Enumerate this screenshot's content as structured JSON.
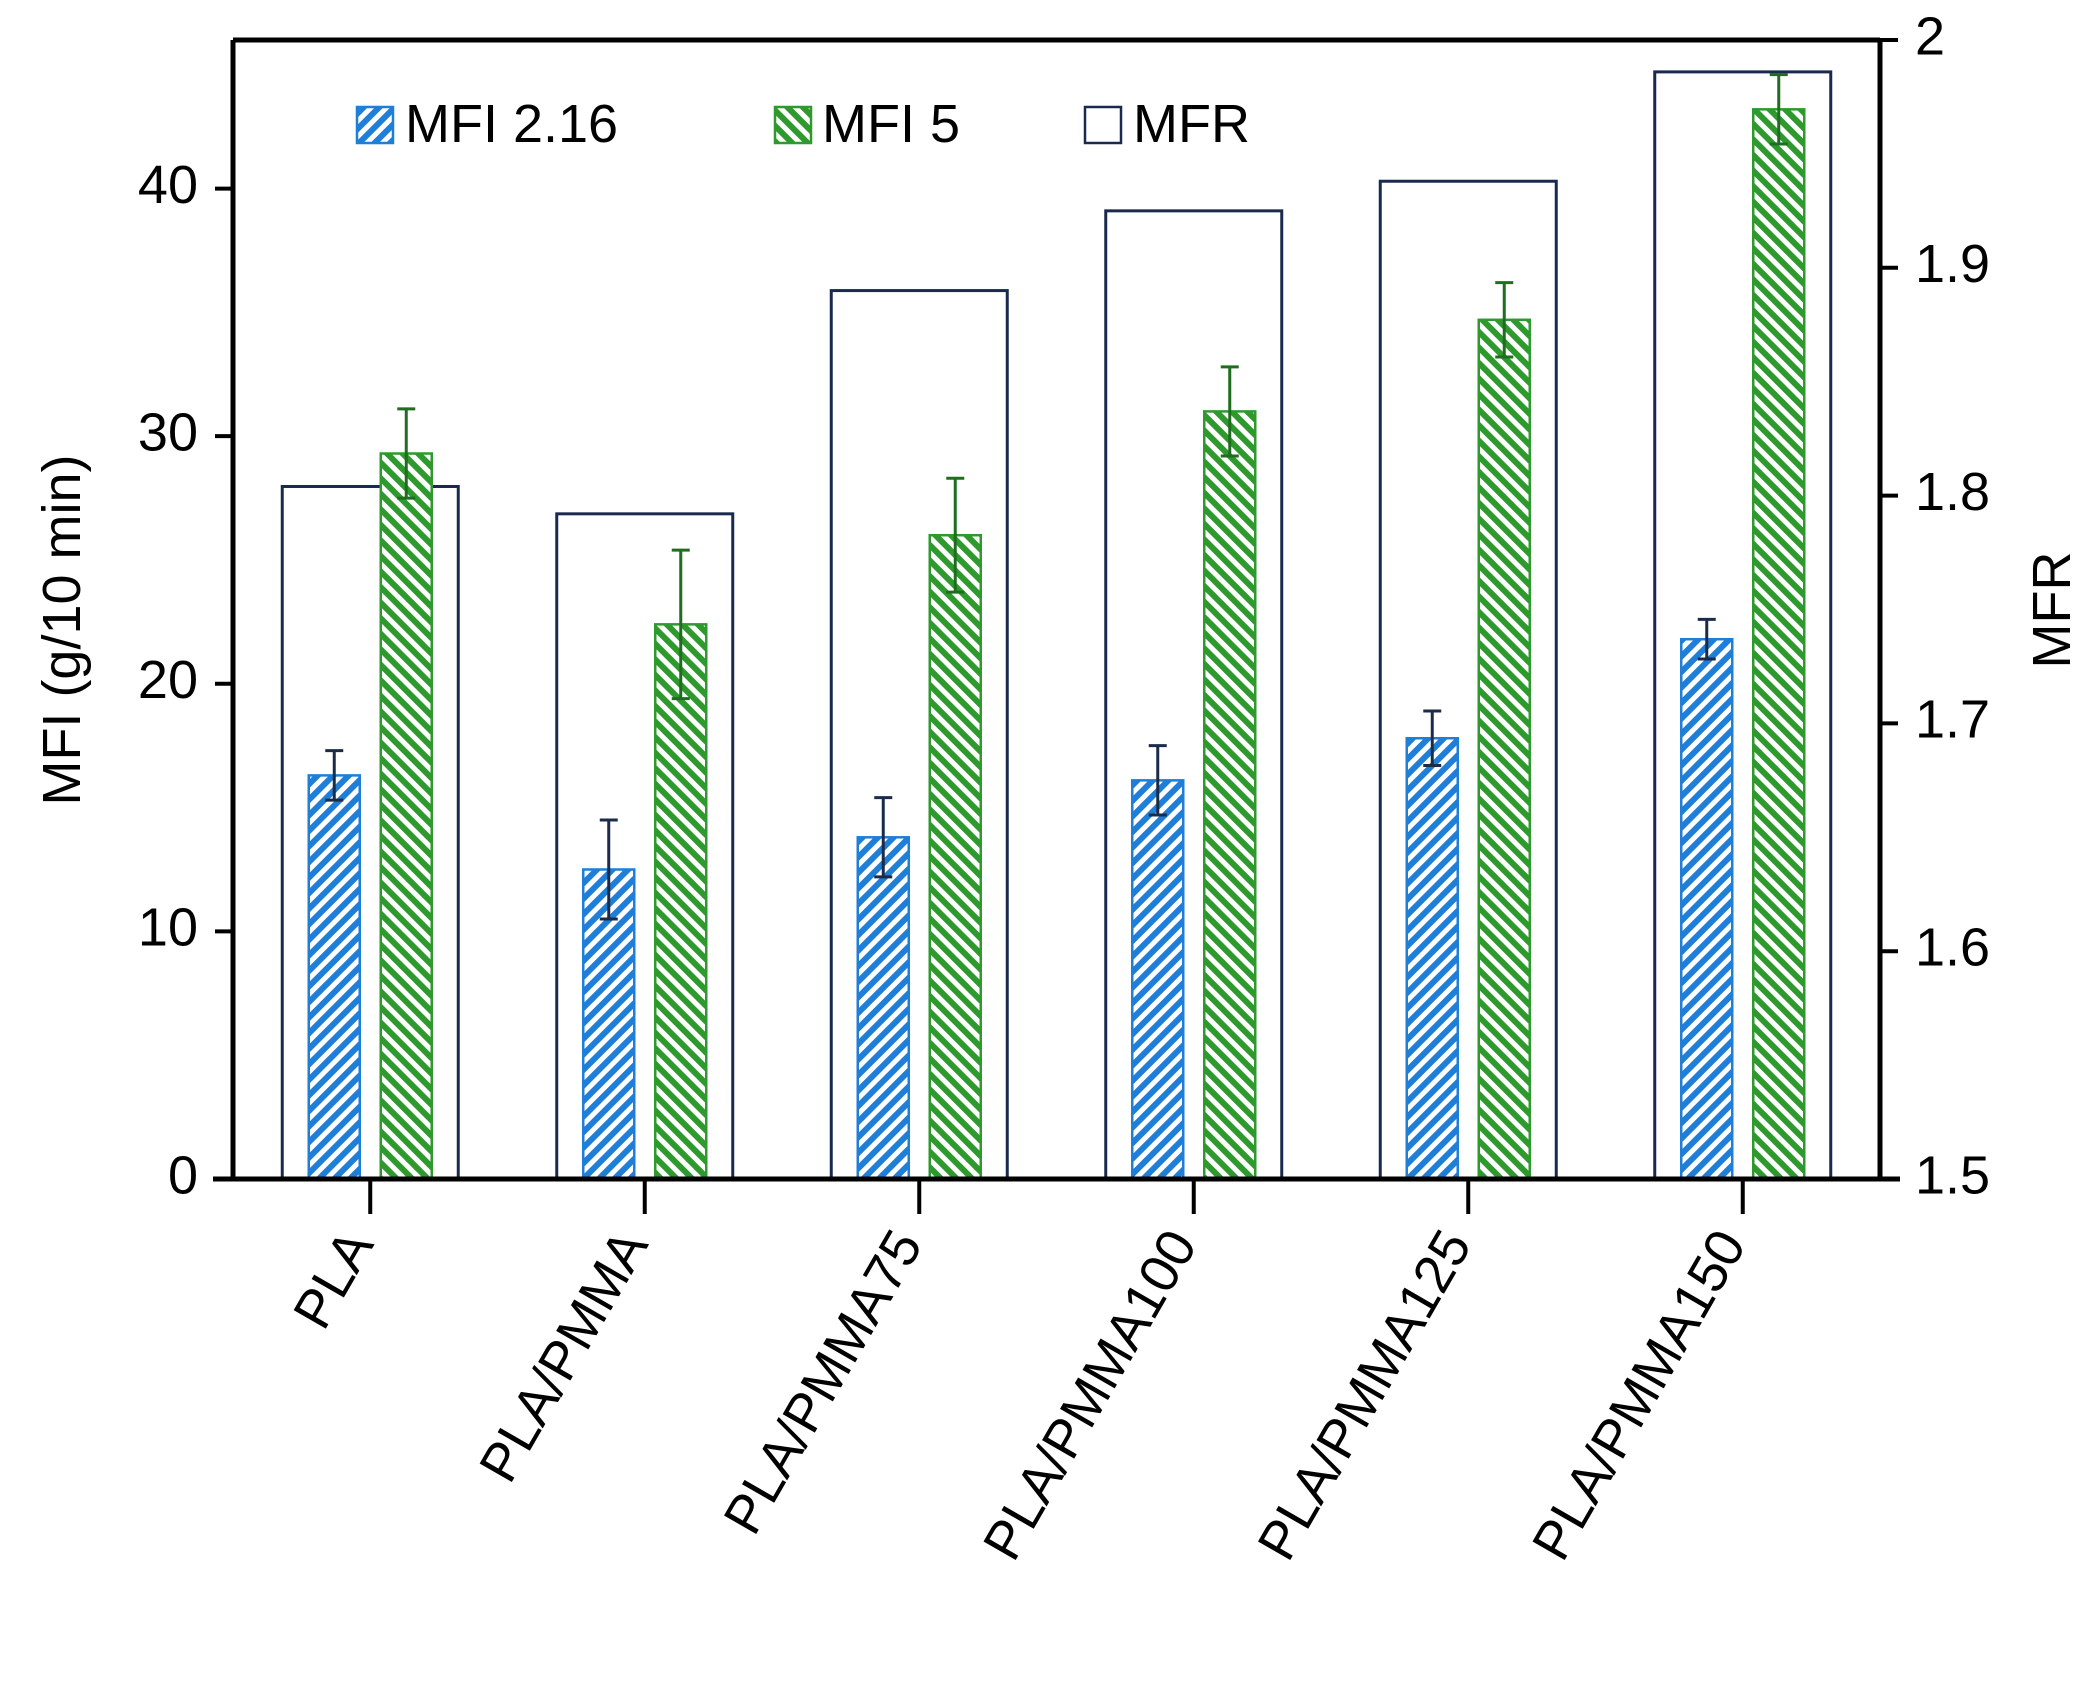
{
  "chart_data": {
    "type": "bar",
    "categories": [
      "PLA",
      "PLA/PMMA",
      "PLA/PMMA75",
      "PLA/PMMA100",
      "PLA/PMMA125",
      "PLA/PMMA150"
    ],
    "series": [
      {
        "name": "MFI 2.16",
        "axis": "left",
        "color": "#1f7ed8",
        "pattern": "diagonal-hatch",
        "values": [
          16.3,
          12.5,
          13.8,
          16.1,
          17.8,
          21.8
        ],
        "errors": [
          1.0,
          2.0,
          1.6,
          1.4,
          1.1,
          0.8
        ]
      },
      {
        "name": "MFI 5",
        "axis": "left",
        "color": "#2e9a2e",
        "pattern": "diagonal-hatch",
        "values": [
          29.3,
          22.4,
          26.0,
          31.0,
          34.7,
          43.2
        ],
        "errors": [
          1.8,
          3.0,
          2.3,
          1.8,
          1.5,
          1.4
        ]
      },
      {
        "name": "MFR",
        "axis": "right",
        "color": "#1a2a4f",
        "pattern": "outline",
        "values": [
          1.804,
          1.792,
          1.89,
          1.925,
          1.938,
          1.986
        ]
      }
    ],
    "left_axis": {
      "label": "MFI (g/10 min)",
      "ylim": [
        0,
        46
      ],
      "ticks": [
        0,
        10,
        20,
        30,
        40
      ],
      "tick_labels": [
        "0",
        "10",
        "20",
        "30",
        "40"
      ]
    },
    "right_axis": {
      "label": "MFR",
      "ylim": [
        1.5,
        2.0
      ],
      "ticks": [
        1.5,
        1.6,
        1.7,
        1.8,
        1.9,
        2.0
      ],
      "tick_labels": [
        "1.5",
        "1.6",
        "1.7",
        "1.8",
        "1.9",
        "2"
      ]
    },
    "legend": {
      "position": "top-left",
      "entries": [
        "MFI 2.16",
        "MFI 5",
        "MFR"
      ]
    },
    "grid": false
  }
}
